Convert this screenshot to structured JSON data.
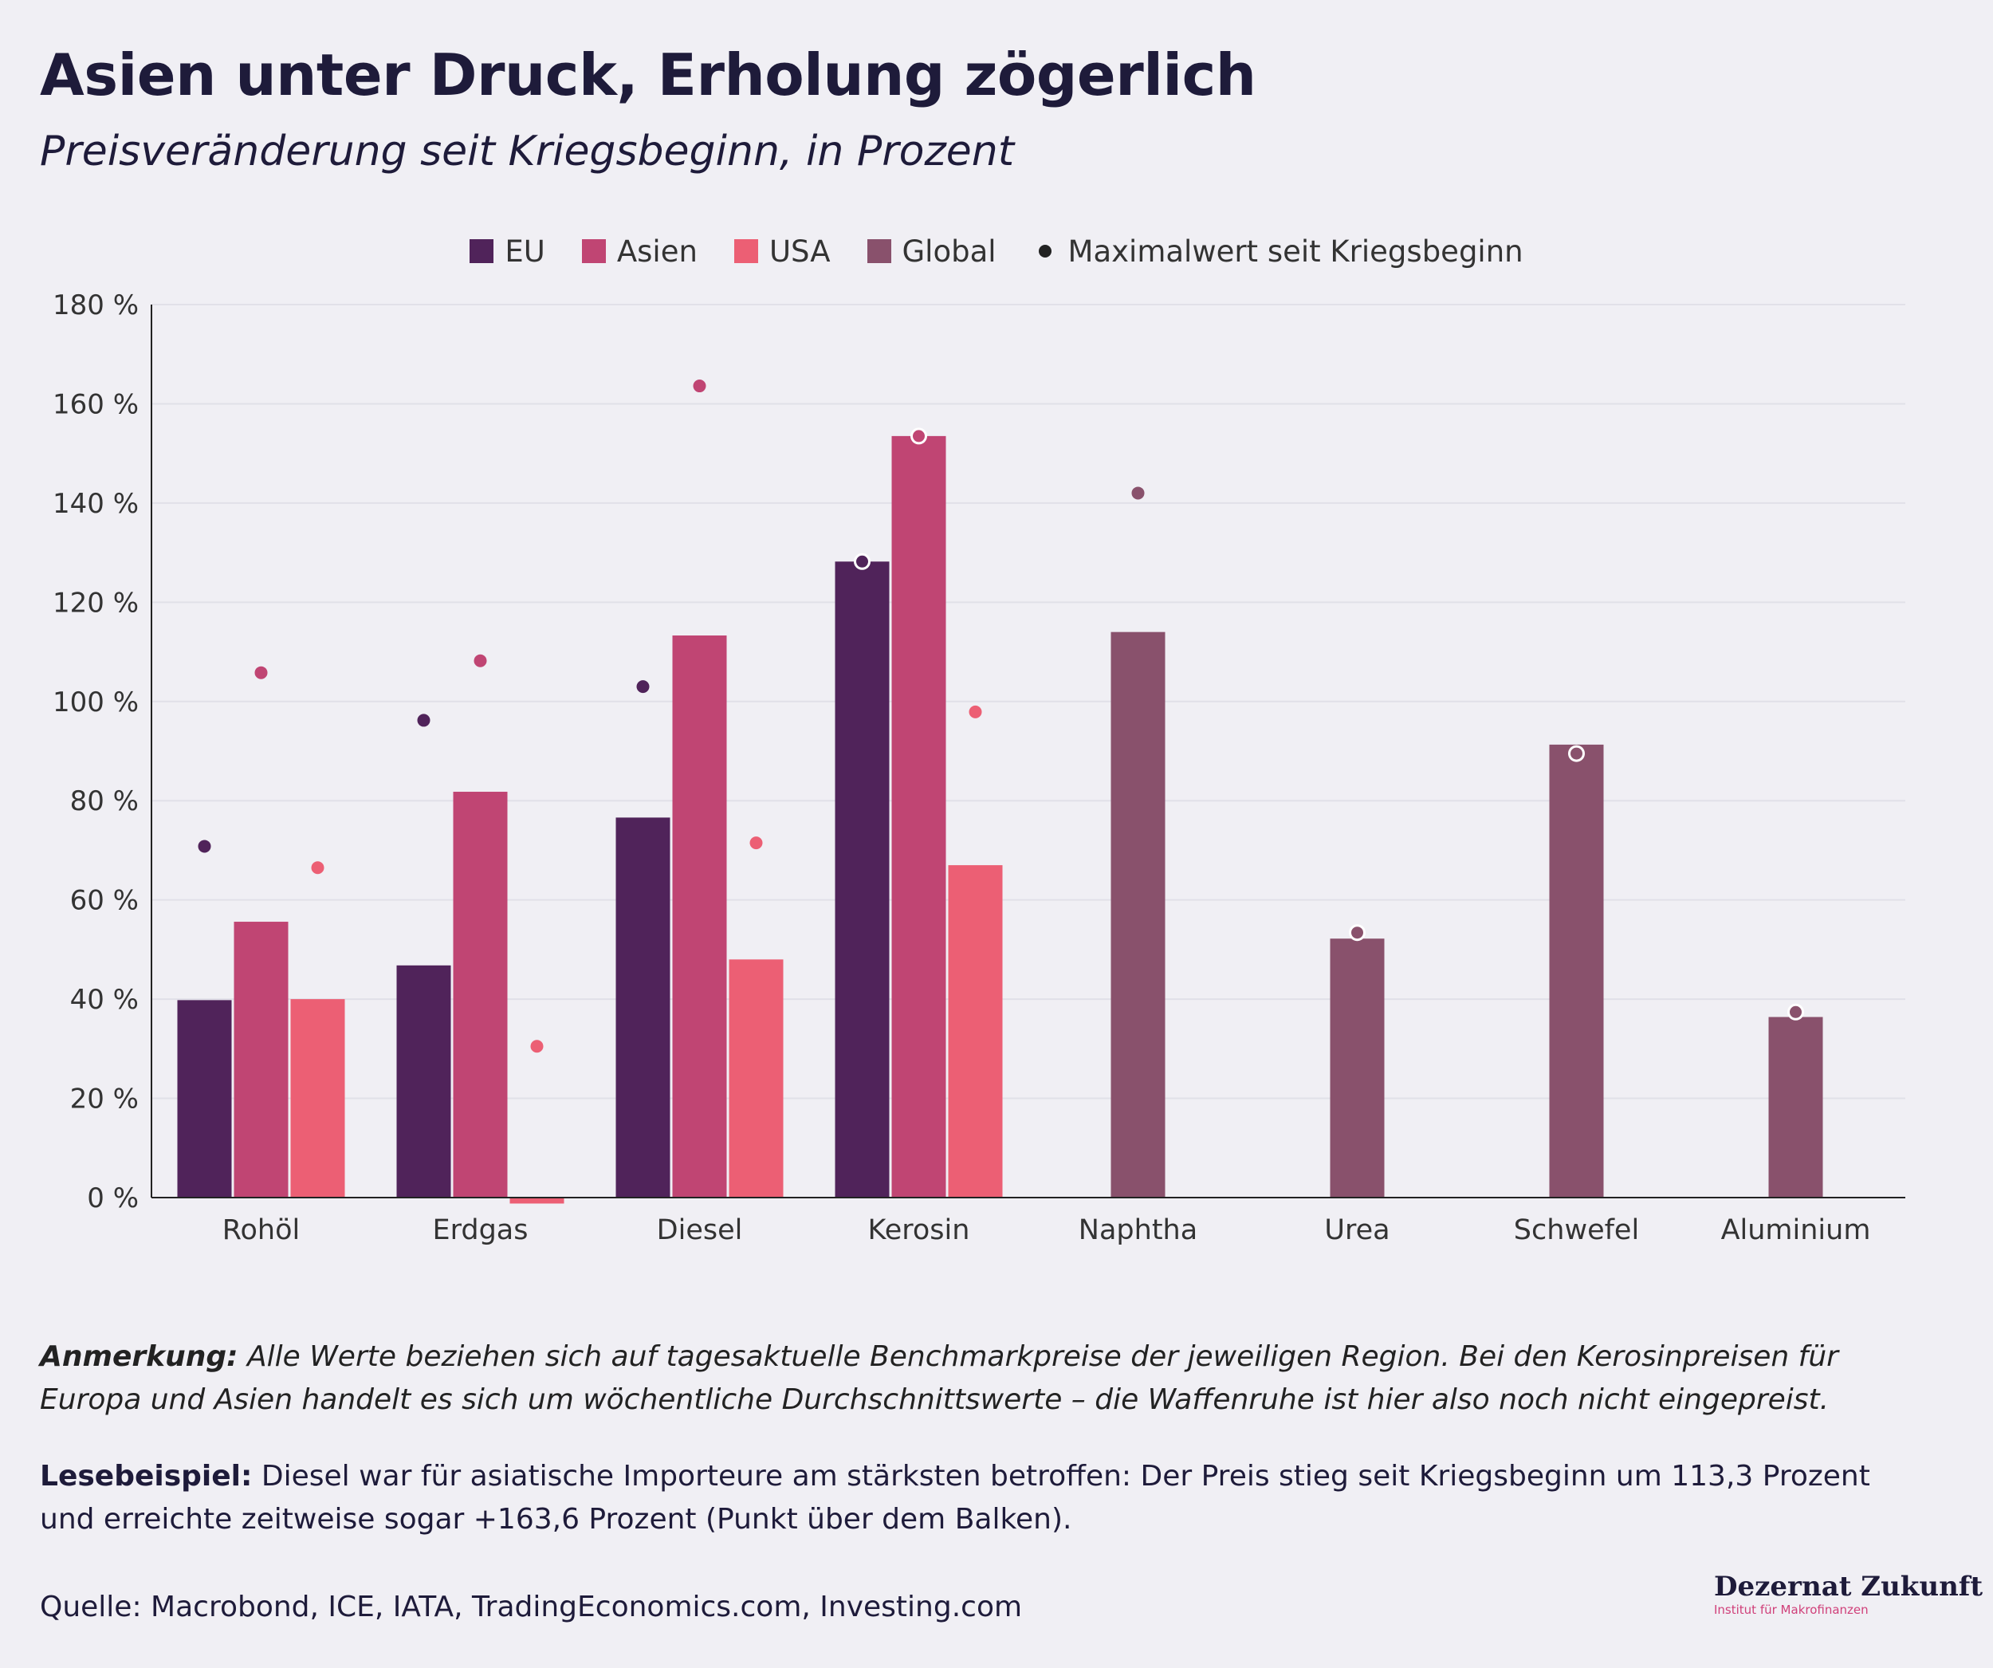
{
  "title": "Asien unter Druck, Erholung zögerlich",
  "subtitle": "Preisveränderung seit Kriegsbeginn, in Prozent",
  "legend": {
    "eu": "EU",
    "asien": "Asien",
    "usa": "USA",
    "global": "Global",
    "max": "Maximalwert seit Kriegsbeginn"
  },
  "colors": {
    "EU": "#50235a",
    "Asien": "#c04573",
    "USA": "#ec5f74",
    "Global": "#89516c"
  },
  "chart_data": {
    "type": "bar",
    "categories": [
      "Rohöl",
      "Erdgas",
      "Diesel",
      "Kerosin",
      "Naphtha",
      "Urea",
      "Schwefel",
      "Aluminium"
    ],
    "series": [
      {
        "name": "EU",
        "values": [
          39.8,
          46.8,
          76.6,
          128.2,
          null,
          null,
          null,
          null
        ],
        "max": [
          70.8,
          96.2,
          103.0,
          128.2,
          null,
          null,
          null,
          null
        ]
      },
      {
        "name": "Asien",
        "values": [
          55.6,
          81.8,
          113.3,
          153.5,
          null,
          null,
          null,
          null
        ],
        "max": [
          105.8,
          108.2,
          163.6,
          153.5,
          null,
          null,
          null,
          null
        ]
      },
      {
        "name": "USA",
        "values": [
          40.0,
          -1.2,
          48.0,
          67.0,
          null,
          null,
          null,
          null
        ],
        "max": [
          66.5,
          30.5,
          71.5,
          97.9,
          null,
          null,
          null,
          null
        ]
      },
      {
        "name": "Global",
        "values": [
          null,
          null,
          null,
          null,
          114.0,
          52.2,
          91.3,
          36.4
        ],
        "max": [
          null,
          null,
          null,
          null,
          142.0,
          53.4,
          89.5,
          37.4
        ]
      }
    ],
    "ylim": [
      0,
      180
    ],
    "yticks": [
      "0 %",
      "20 %",
      "40 %",
      "60 %",
      "80 %",
      "100 %",
      "120 %",
      "140 %",
      "160 %",
      "180 %"
    ],
    "grid": true,
    "legend_position": "top-center"
  },
  "footer": {
    "note_label": "Anmerkung:",
    "note_text": " Alle Werte beziehen sich auf tagesaktuelle Benchmarkpreise der jeweiligen Region. Bei den Kerosinpreisen für Europa und Asien handelt es sich um wöchentliche Durchschnittswerte – die Waffenruhe ist hier also noch nicht eingepreist.",
    "example_label": "Lesebeispiel:",
    "example_text": " Diesel war für asiatische Importeure am stärksten betroffen: Der Preis stieg seit Kriegsbeginn um 113,3 Prozent und erreichte zeitweise sogar +163,6 Prozent (Punkt über dem Balken).",
    "source": "Quelle: Macrobond, ICE, IATA, TradingEconomics.com, Investing.com"
  },
  "logo": {
    "name": "Dezernat Zukunft",
    "tagline": "Institut für Makrofinanzen"
  }
}
